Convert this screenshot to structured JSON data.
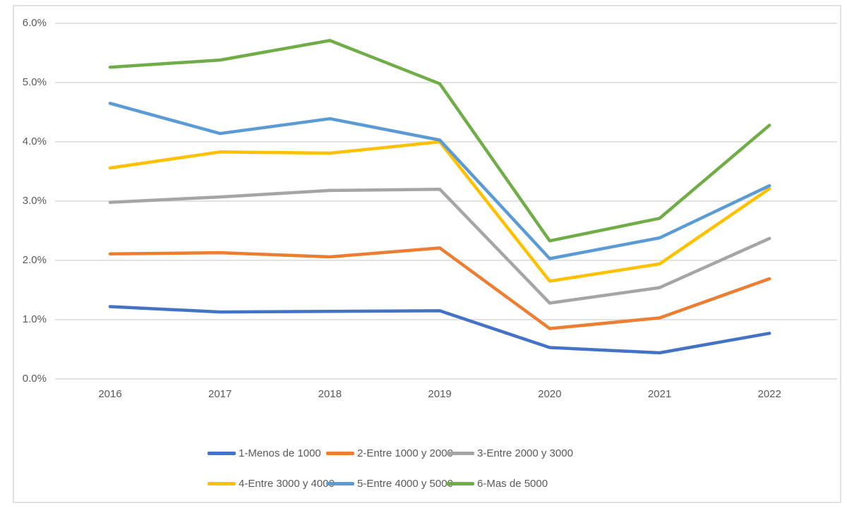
{
  "style": {
    "background": "#FFFFFF",
    "border_color": "#E2E2E2",
    "grid_color": "#D9D9D9",
    "axis_text_color": "#595959",
    "legend_text_color": "#595959"
  },
  "chart_data": {
    "type": "line",
    "title": "",
    "xlabel": "",
    "ylabel": "",
    "x_labels": [
      "2016",
      "2017",
      "2018",
      "2019",
      "2020",
      "2021",
      "2022"
    ],
    "y_tick_labels": [
      "0.0%",
      "1.0%",
      "2.0%",
      "3.0%",
      "4.0%",
      "5.0%",
      "6.0%"
    ],
    "ylim": [
      0,
      6
    ],
    "y_unit": "percent",
    "grid": true,
    "legend_position": "bottom",
    "legend_rows": 2,
    "series": [
      {
        "name": "1-Menos de 1000",
        "color": "#4472C4",
        "values": [
          1.22,
          1.13,
          1.14,
          1.15,
          0.53,
          0.44,
          0.77
        ]
      },
      {
        "name": "2-Entre 1000 y 2000",
        "color": "#ED7D31",
        "values": [
          2.11,
          2.13,
          2.06,
          2.21,
          0.85,
          1.03,
          1.69
        ]
      },
      {
        "name": "3-Entre 2000 y 3000",
        "color": "#A5A5A5",
        "values": [
          2.98,
          3.07,
          3.18,
          3.2,
          1.28,
          1.54,
          2.37
        ]
      },
      {
        "name": "4-Entre 3000 y 4000",
        "color": "#FFC000",
        "values": [
          3.56,
          3.83,
          3.81,
          4.0,
          1.65,
          1.94,
          3.21
        ]
      },
      {
        "name": "5-Entre 4000 y 5000",
        "color": "#5B9BD5",
        "values": [
          4.65,
          4.14,
          4.39,
          4.03,
          2.03,
          2.38,
          3.26
        ]
      },
      {
        "name": "6-Mas de 5000",
        "color": "#70AD47",
        "values": [
          5.26,
          5.38,
          5.71,
          4.98,
          2.33,
          2.71,
          4.28
        ]
      }
    ]
  }
}
